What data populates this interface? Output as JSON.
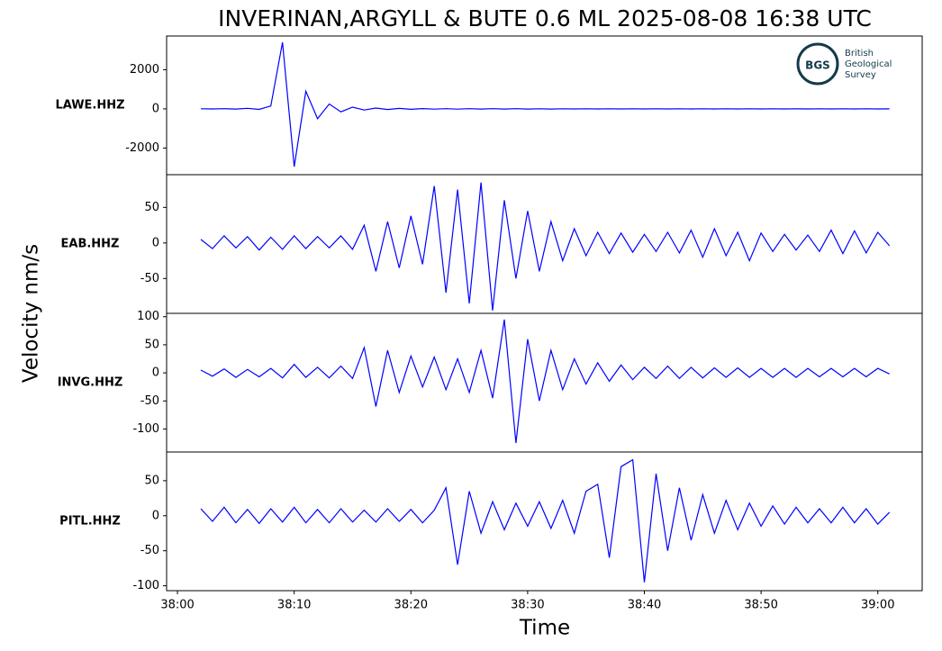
{
  "chart_data": [
    {
      "type": "line",
      "suptitle": "INVERINAN,ARGYLL & BUTE 0.6 ML   2025-08-08 16:38 UTC",
      "supylabel": "Velocity nm/s",
      "logo": {
        "mark": "BGS",
        "text": [
          "British",
          "Geological",
          "Survey"
        ]
      },
      "station": "LAWE.HHZ",
      "color": "#0000ff",
      "xlim": [
        -0.93,
        63.8
      ],
      "ylim": [
        -3360,
        3720
      ],
      "yticks": [
        -2000,
        0,
        2000
      ],
      "x": [
        2,
        3,
        4,
        5,
        6,
        7,
        8,
        9,
        10,
        11,
        12,
        13,
        14,
        15,
        16,
        17,
        18,
        19,
        20,
        21,
        22,
        23,
        24,
        25,
        26,
        27,
        28,
        29,
        30,
        31,
        32,
        33,
        34,
        35,
        36,
        37,
        38,
        39,
        40,
        41,
        42,
        43,
        44,
        45,
        46,
        47,
        48,
        49,
        50,
        51,
        52,
        53,
        54,
        55,
        56,
        57,
        58,
        59,
        60,
        61
      ],
      "values": [
        5,
        -6,
        8,
        -10,
        30,
        -25,
        150,
        3400,
        -2950,
        900,
        -500,
        250,
        -150,
        90,
        -60,
        40,
        -30,
        25,
        -20,
        15,
        -15,
        12,
        -12,
        10,
        -10,
        8,
        -8,
        8,
        -8,
        7,
        -7,
        6,
        -6,
        6,
        -6,
        5,
        -5,
        5,
        -5,
        6,
        -6,
        5,
        -5,
        5,
        -5,
        5,
        -5,
        5,
        -5,
        5,
        -5,
        5,
        -5,
        5,
        -5,
        5,
        -5,
        5,
        -5,
        0
      ]
    },
    {
      "type": "line",
      "station": "EAB.HHZ",
      "color": "#0000ff",
      "xlim": [
        -0.93,
        63.8
      ],
      "ylim": [
        -99,
        96
      ],
      "yticks": [
        -50,
        0,
        50
      ],
      "x": [
        2,
        3,
        4,
        5,
        6,
        7,
        8,
        9,
        10,
        11,
        12,
        13,
        14,
        15,
        16,
        17,
        18,
        19,
        20,
        21,
        22,
        23,
        24,
        25,
        26,
        27,
        28,
        29,
        30,
        31,
        32,
        33,
        34,
        35,
        36,
        37,
        38,
        39,
        40,
        41,
        42,
        43,
        44,
        45,
        46,
        47,
        48,
        49,
        50,
        51,
        52,
        53,
        54,
        55,
        56,
        57,
        58,
        59,
        60,
        61
      ],
      "values": [
        5,
        -8,
        10,
        -7,
        9,
        -10,
        8,
        -9,
        10,
        -8,
        9,
        -7,
        10,
        -9,
        25,
        -40,
        30,
        -35,
        38,
        -30,
        80,
        -70,
        75,
        -85,
        85,
        -95,
        60,
        -50,
        45,
        -40,
        30,
        -25,
        20,
        -18,
        15,
        -15,
        14,
        -13,
        12,
        -12,
        15,
        -14,
        18,
        -20,
        20,
        -18,
        15,
        -25,
        14,
        -12,
        12,
        -10,
        11,
        -12,
        18,
        -15,
        17,
        -14,
        15,
        -4
      ]
    },
    {
      "type": "line",
      "station": "INVG.HHZ",
      "color": "#0000ff",
      "xlim": [
        -0.93,
        63.8
      ],
      "ylim": [
        -141,
        106
      ],
      "yticks": [
        -100,
        -50,
        0,
        50,
        100
      ],
      "x": [
        2,
        3,
        4,
        5,
        6,
        7,
        8,
        9,
        10,
        11,
        12,
        13,
        14,
        15,
        16,
        17,
        18,
        19,
        20,
        21,
        22,
        23,
        24,
        25,
        26,
        27,
        28,
        29,
        30,
        31,
        32,
        33,
        34,
        35,
        36,
        37,
        38,
        39,
        40,
        41,
        42,
        43,
        44,
        45,
        46,
        47,
        48,
        49,
        50,
        51,
        52,
        53,
        54,
        55,
        56,
        57,
        58,
        59,
        60,
        61
      ],
      "values": [
        5,
        -6,
        7,
        -8,
        6,
        -7,
        8,
        -9,
        15,
        -8,
        10,
        -9,
        12,
        -10,
        45,
        -60,
        40,
        -35,
        30,
        -25,
        28,
        -30,
        25,
        -35,
        40,
        -45,
        95,
        -125,
        60,
        -50,
        40,
        -30,
        25,
        -20,
        18,
        -15,
        14,
        -12,
        10,
        -10,
        12,
        -10,
        10,
        -9,
        9,
        -8,
        9,
        -8,
        8,
        -8,
        8,
        -8,
        8,
        -7,
        8,
        -7,
        8,
        -7,
        8,
        -2
      ]
    },
    {
      "type": "line",
      "station": "PITL.HHZ",
      "color": "#0000ff",
      "xlabel": "Time",
      "xlim": [
        -0.93,
        63.8
      ],
      "ylim": [
        -107,
        91
      ],
      "yticks": [
        -100,
        -50,
        0,
        50
      ],
      "xticks": [
        {
          "value": 0,
          "label": "38:00"
        },
        {
          "value": 10,
          "label": "38:10"
        },
        {
          "value": 20,
          "label": "38:20"
        },
        {
          "value": 30,
          "label": "38:30"
        },
        {
          "value": 40,
          "label": "38:40"
        },
        {
          "value": 50,
          "label": "38:50"
        },
        {
          "value": 60,
          "label": "39:00"
        }
      ],
      "x": [
        2,
        3,
        4,
        5,
        6,
        7,
        8,
        9,
        10,
        11,
        12,
        13,
        14,
        15,
        16,
        17,
        18,
        19,
        20,
        21,
        22,
        23,
        24,
        25,
        26,
        27,
        28,
        29,
        30,
        31,
        32,
        33,
        34,
        35,
        36,
        37,
        38,
        39,
        40,
        41,
        42,
        43,
        44,
        45,
        46,
        47,
        48,
        49,
        50,
        51,
        52,
        53,
        54,
        55,
        56,
        57,
        58,
        59,
        60,
        61
      ],
      "values": [
        10,
        -8,
        12,
        -10,
        9,
        -11,
        10,
        -9,
        12,
        -10,
        9,
        -10,
        10,
        -9,
        8,
        -9,
        10,
        -8,
        9,
        -10,
        8,
        40,
        -70,
        35,
        -25,
        20,
        -20,
        18,
        -15,
        20,
        -18,
        22,
        -25,
        35,
        45,
        -60,
        70,
        80,
        -95,
        60,
        -50,
        40,
        -35,
        30,
        -25,
        22,
        -20,
        18,
        -15,
        14,
        -12,
        12,
        -10,
        10,
        -10,
        12,
        -10,
        10,
        -12,
        5
      ]
    }
  ]
}
